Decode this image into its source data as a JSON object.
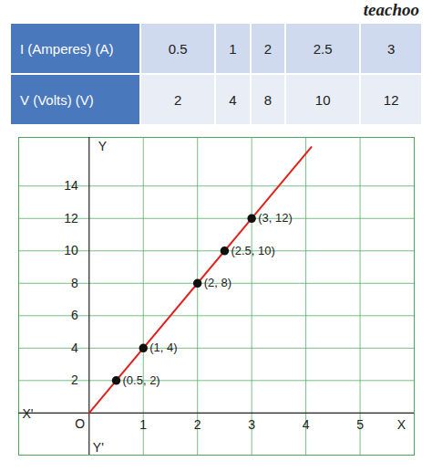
{
  "watermark": "teachoo",
  "table": {
    "rows": [
      [
        "I (Amperes) (A)",
        0.5,
        1,
        2,
        2.5,
        3
      ],
      [
        "V (Volts) (V)",
        2,
        4,
        8,
        10,
        12
      ]
    ]
  },
  "chart_data": {
    "type": "scatter",
    "xlabel": "X",
    "ylabel": "Y",
    "xlabel_negative": "X'",
    "ylabel_negative": "Y'",
    "origin_label": "O",
    "series": [
      {
        "type": "line",
        "color": "#e0221c",
        "x": [
          0,
          4.1
        ],
        "values": [
          0,
          16.4
        ]
      },
      {
        "type": "scatter",
        "marker": "circle",
        "color": "#111111",
        "x": [
          0.5,
          1,
          2,
          2.5,
          3
        ],
        "values": [
          2,
          4,
          8,
          10,
          12
        ],
        "value_labels": [
          "(0.5, 2)",
          "(1, 4)",
          "(2, 8)",
          "(2.5, 10)",
          "(3, 12)"
        ]
      }
    ],
    "data_labels": true,
    "xlim": [
      -1.3,
      6.0
    ],
    "ylim": [
      -2.6,
      17.0
    ],
    "xticks": [
      1,
      2,
      3,
      4,
      5
    ],
    "yticks": [
      2,
      4,
      6,
      8,
      10,
      12,
      14
    ],
    "grid": true
  }
}
